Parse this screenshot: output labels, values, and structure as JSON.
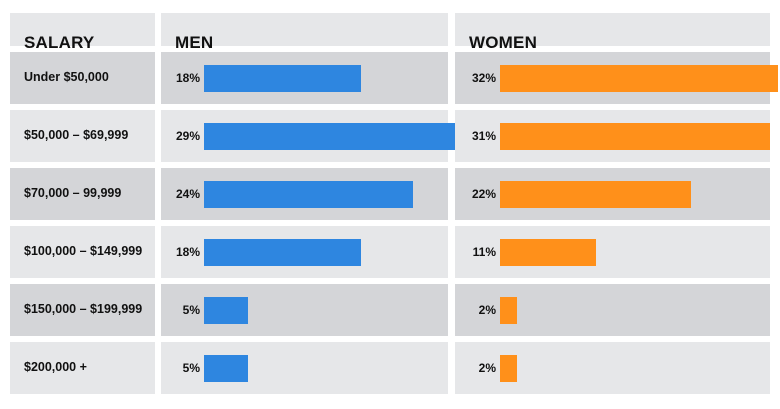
{
  "headers": {
    "salary": "SALARY",
    "men": "MEN",
    "women": "WOMEN"
  },
  "colors": {
    "men": "#2e86e0",
    "women": "#ff901a",
    "row_dark": "#d4d5d8",
    "row_light": "#e6e7e9"
  },
  "chart_data": {
    "type": "bar",
    "categories": [
      "Under $50,000",
      "$50,000 – $69,999",
      "$70,000 – 99,999",
      "$100,000 – $149,999",
      "$150,000  – $199,999",
      "$200,000 +"
    ],
    "series": [
      {
        "name": "MEN",
        "values": [
          18,
          29,
          24,
          18,
          5,
          5
        ],
        "labels": [
          "18%",
          "29%",
          "24%",
          "18%",
          "5%",
          "5%"
        ]
      },
      {
        "name": "WOMEN",
        "values": [
          32,
          31,
          22,
          11,
          2,
          2
        ],
        "labels": [
          "32%",
          "31%",
          "22%",
          "11%",
          "2%",
          "2%"
        ]
      }
    ]
  }
}
